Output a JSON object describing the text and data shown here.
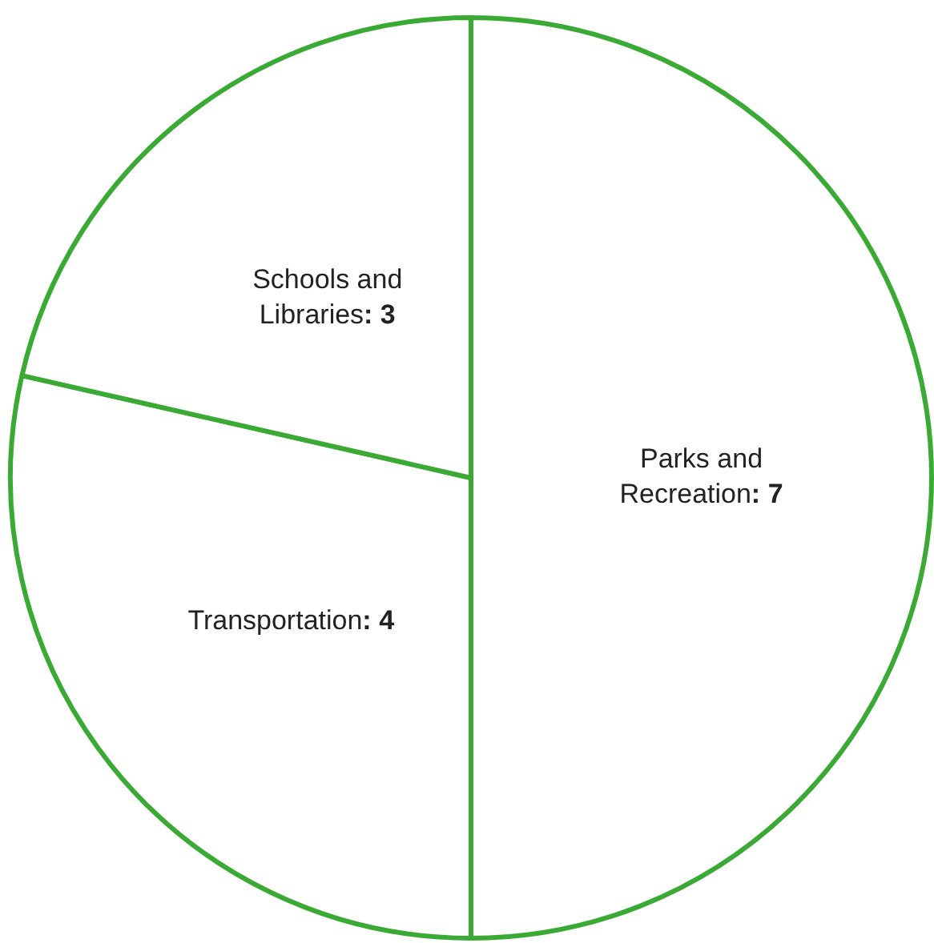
{
  "chart_data": {
    "type": "pie",
    "categories": [
      "Parks and Recreation",
      "Transportation",
      "Schools and Libraries"
    ],
    "values": [
      7,
      4,
      3
    ],
    "colors": [
      "#ffffff",
      "#ffffff",
      "#ffffff"
    ],
    "value_labels": [
      ": 7",
      ": 4",
      ": 3"
    ],
    "legend": false
  }
}
